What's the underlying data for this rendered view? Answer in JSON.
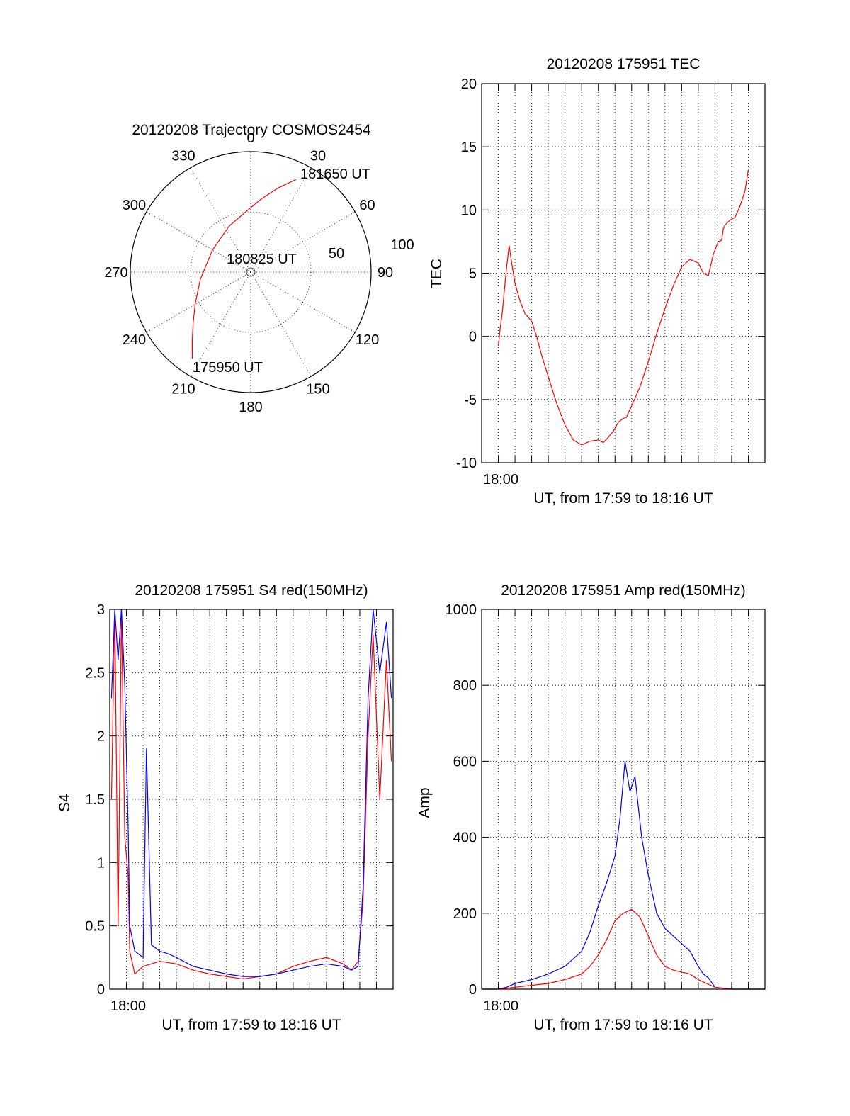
{
  "chart_data": [
    {
      "type": "polar",
      "title": "20120208 Trajectory COSMOS2454",
      "azimuth_labels": [
        "0",
        "30",
        "60",
        "90",
        "120",
        "150",
        "180",
        "210",
        "240",
        "270",
        "300",
        "330"
      ],
      "radial_labels": [
        "50",
        "100"
      ],
      "series": [
        {
          "color": "#ff0000",
          "points": [
            {
              "az": 214,
              "el": 12
            },
            {
              "az": 220,
              "el": 22
            },
            {
              "az": 228,
              "el": 32
            },
            {
              "az": 240,
              "el": 42
            },
            {
              "az": 262,
              "el": 52
            },
            {
              "az": 300,
              "el": 57
            },
            {
              "az": 335,
              "el": 52
            },
            {
              "az": 355,
              "el": 45
            },
            {
              "az": 8,
              "el": 35
            },
            {
              "az": 18,
              "el": 24
            },
            {
              "az": 26,
              "el": 13
            }
          ]
        }
      ],
      "annotations": [
        "181650 UT",
        "180825 UT",
        "175950 UT"
      ]
    },
    {
      "type": "line",
      "title": "20120208 175951 TEC",
      "xlabel": "UT, from 17:59 to 18:16 UT",
      "ylabel": "TEC",
      "x_tick_labels": [
        "18:00"
      ],
      "xlim": [
        0,
        17
      ],
      "ylim": [
        -10,
        20
      ],
      "y_ticks": [
        -10,
        -5,
        0,
        5,
        10,
        15,
        20
      ],
      "grid": true,
      "series": [
        {
          "color": "#ff0000",
          "x": [
            1.0,
            1.1,
            1.25,
            1.35,
            1.5,
            1.65,
            1.8,
            2.0,
            2.3,
            2.6,
            3.0,
            3.3,
            3.6,
            4.0,
            4.5,
            5.0,
            5.5,
            6.0,
            6.5,
            7.0,
            7.3,
            7.6,
            7.9,
            8.2,
            8.5,
            8.7,
            8.75,
            9.0,
            9.5,
            10.0,
            10.5,
            11.0,
            11.5,
            12.0,
            12.5,
            13.0,
            13.3,
            13.6,
            13.9,
            14.2,
            14.4,
            14.5,
            14.6,
            14.9,
            15.2,
            15.5,
            15.8,
            16.0
          ],
          "y": [
            -0.8,
            0.5,
            2.0,
            3.5,
            5.5,
            7.2,
            5.8,
            4.2,
            2.8,
            1.8,
            1.2,
            0.0,
            -1.5,
            -3.2,
            -5.3,
            -7.0,
            -8.2,
            -8.6,
            -8.3,
            -8.2,
            -8.4,
            -8.0,
            -7.5,
            -6.8,
            -6.5,
            -6.4,
            -6.2,
            -5.5,
            -4.0,
            -2.0,
            0.2,
            2.2,
            4.0,
            5.5,
            6.1,
            5.8,
            5.0,
            4.8,
            6.5,
            7.5,
            7.6,
            8.5,
            8.8,
            9.2,
            9.4,
            10.3,
            11.5,
            13.2
          ]
        }
      ]
    },
    {
      "type": "line",
      "title": "20120208 175951 S4 red(150MHz)",
      "xlabel": "UT, from 17:59 to 18:16 UT",
      "ylabel": "S4",
      "x_tick_labels": [
        "18:00"
      ],
      "xlim": [
        0,
        17
      ],
      "ylim": [
        0,
        3
      ],
      "y_ticks": [
        0,
        0.5,
        1,
        1.5,
        2,
        2.5,
        3
      ],
      "grid": true,
      "series": [
        {
          "color": "#0000ff",
          "x": [
            0.1,
            0.3,
            0.5,
            0.7,
            0.9,
            1.1,
            1.2,
            1.5,
            2.0,
            2.2,
            2.5,
            3.0,
            3.5,
            4.0,
            5.0,
            6.0,
            7.0,
            8.0,
            9.0,
            10.0,
            11.0,
            12.0,
            13.0,
            14.0,
            14.5,
            14.9,
            15.2,
            15.5,
            15.8,
            16.2,
            16.6,
            16.9
          ],
          "y": [
            2.3,
            3.0,
            2.6,
            3.0,
            2.4,
            1.3,
            0.5,
            0.3,
            0.25,
            1.9,
            0.35,
            0.3,
            0.28,
            0.25,
            0.18,
            0.15,
            0.12,
            0.1,
            0.1,
            0.12,
            0.15,
            0.18,
            0.2,
            0.18,
            0.15,
            0.18,
            0.8,
            2.3,
            3.0,
            2.5,
            2.9,
            2.3
          ]
        },
        {
          "color": "#ff0000",
          "x": [
            0.1,
            0.3,
            0.5,
            0.7,
            0.9,
            1.1,
            1.2,
            1.5,
            2.0,
            3.0,
            4.0,
            5.0,
            6.0,
            7.0,
            8.0,
            9.0,
            10.0,
            11.0,
            12.0,
            13.0,
            14.0,
            14.5,
            14.9,
            15.2,
            15.5,
            15.8,
            16.2,
            16.6,
            16.9
          ],
          "y": [
            1.5,
            3.0,
            0.5,
            3.0,
            1.2,
            0.9,
            0.3,
            0.12,
            0.18,
            0.22,
            0.2,
            0.15,
            0.12,
            0.1,
            0.08,
            0.1,
            0.12,
            0.18,
            0.22,
            0.25,
            0.2,
            0.15,
            0.22,
            0.7,
            2.0,
            2.8,
            1.5,
            2.6,
            1.8
          ]
        }
      ]
    },
    {
      "type": "line",
      "title": "20120208 175951 Amp red(150MHz)",
      "xlabel": "UT, from 17:59 to 18:16 UT",
      "ylabel": "Amp",
      "x_tick_labels": [
        "18:00"
      ],
      "xlim": [
        0,
        17
      ],
      "ylim": [
        0,
        1000
      ],
      "y_ticks": [
        0,
        200,
        400,
        600,
        800,
        1000
      ],
      "grid": true,
      "series": [
        {
          "color": "#0000ff",
          "x": [
            0.0,
            1.0,
            1.5,
            2.0,
            3.0,
            4.0,
            5.0,
            6.0,
            6.5,
            7.0,
            7.5,
            8.0,
            8.3,
            8.6,
            8.9,
            9.2,
            9.6,
            10.0,
            10.5,
            11.0,
            11.5,
            12.0,
            12.5,
            13.0,
            13.3,
            13.6,
            14.0,
            15.0,
            16.0,
            17.0
          ],
          "y": [
            0,
            0,
            5,
            15,
            25,
            40,
            60,
            100,
            150,
            220,
            280,
            350,
            450,
            600,
            520,
            560,
            400,
            300,
            200,
            160,
            140,
            120,
            100,
            60,
            40,
            30,
            5,
            0,
            0,
            0
          ]
        },
        {
          "color": "#ff0000",
          "x": [
            0.0,
            1.0,
            2.0,
            3.0,
            4.0,
            5.0,
            6.0,
            6.5,
            7.0,
            7.5,
            8.0,
            8.5,
            9.0,
            9.5,
            10.0,
            10.5,
            11.0,
            11.5,
            12.0,
            12.5,
            13.0,
            13.5,
            14.0,
            15.0,
            16.0,
            17.0
          ],
          "y": [
            0,
            0,
            5,
            10,
            15,
            25,
            40,
            60,
            90,
            130,
            180,
            200,
            210,
            190,
            140,
            90,
            60,
            50,
            45,
            40,
            25,
            15,
            5,
            0,
            0,
            0
          ]
        }
      ]
    }
  ]
}
